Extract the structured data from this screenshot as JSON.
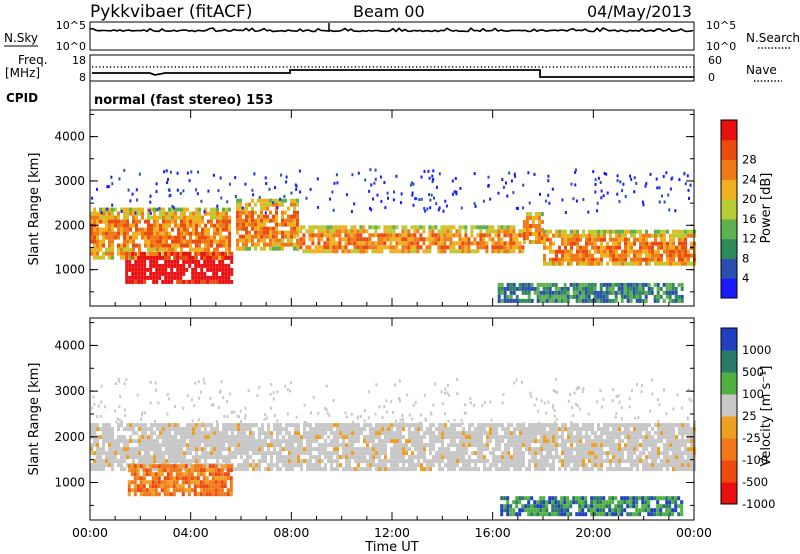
{
  "header": {
    "station": "Pykkvibaer (fitACF)",
    "beam": "Beam 00",
    "date": "04/May/2013"
  },
  "noise_panel": {
    "left_label": "N.Sky",
    "left_ticks": [
      "10^5",
      "10^0"
    ],
    "right_label": "N.Search",
    "right_ticks": [
      "10^5",
      "10^0"
    ]
  },
  "freq_panel": {
    "left_label_1": "Freq.",
    "left_label_2": "[MHz]",
    "left_ticks": [
      "18",
      "8"
    ],
    "right_label": "Nave",
    "right_ticks": [
      "60",
      "0"
    ]
  },
  "cpid_panel": {
    "label": "CPID",
    "text": "normal (fast stereo) 153"
  },
  "chart_data": [
    {
      "type": "heatmap",
      "title": "",
      "ylabel": "Slant Range [km]",
      "ylim": [
        180,
        4600
      ],
      "y_ticks": [
        "1000",
        "2000",
        "3000",
        "4000"
      ],
      "xlim": [
        0,
        24
      ],
      "colorbar": {
        "label": "Power [dB]",
        "ticks": [
          "4",
          "8",
          "12",
          "16",
          "20",
          "24",
          "28"
        ],
        "colors": [
          "#1a1aff",
          "#2a4fb0",
          "#2f8a5a",
          "#5fb04f",
          "#b8cc36",
          "#f0b020",
          "#f07a18",
          "#ea4c10",
          "#e81010"
        ]
      },
      "echo_bands_range_km": [
        {
          "start_h": 0,
          "end_h": 5.6,
          "lo": 1300,
          "hi": 2400,
          "level": "medium"
        },
        {
          "start_h": 1.4,
          "end_h": 5.6,
          "lo": 700,
          "hi": 1400,
          "level": "strong"
        },
        {
          "start_h": 5.8,
          "end_h": 8.2,
          "lo": 1500,
          "hi": 2600,
          "level": "medium"
        },
        {
          "start_h": 8.2,
          "end_h": 17.2,
          "lo": 1400,
          "hi": 2000,
          "level": "medium"
        },
        {
          "start_h": 17.2,
          "end_h": 18.0,
          "lo": 1600,
          "hi": 2300,
          "level": "medium"
        },
        {
          "start_h": 18.0,
          "end_h": 24.0,
          "lo": 1100,
          "hi": 1900,
          "level": "medium"
        },
        {
          "start_h": 16.2,
          "end_h": 23.5,
          "lo": 300,
          "hi": 700,
          "level": "weak"
        }
      ]
    },
    {
      "type": "heatmap",
      "title": "",
      "ylabel": "Slant Range [km]",
      "ylim": [
        180,
        4600
      ],
      "y_ticks": [
        "1000",
        "2000",
        "3000",
        "4000"
      ],
      "xlim": [
        0,
        24
      ],
      "x_ticks": [
        "00:00",
        "04:00",
        "08:00",
        "12:00",
        "16:00",
        "20:00",
        "00:00"
      ],
      "xlabel": "Time UT",
      "colorbar": {
        "label": "Velocity [m s⁻¹]",
        "ticks": [
          "1000",
          "500",
          "100",
          "25",
          "-25",
          "-100",
          "-500",
          "-1000"
        ],
        "colors": [
          "#2040c0",
          "#2a7a6a",
          "#52b040",
          "#c8c8c8",
          "#f0a020",
          "#f07818",
          "#ee4a10",
          "#e81010"
        ]
      },
      "echo_bands_range_km": [
        {
          "start_h": 0,
          "end_h": 24,
          "lo": 1300,
          "hi": 2300,
          "level": "ground_scatter"
        },
        {
          "start_h": 1.5,
          "end_h": 5.6,
          "lo": 700,
          "hi": 1400,
          "level": "negative_velocity"
        },
        {
          "start_h": 16.3,
          "end_h": 23.5,
          "lo": 300,
          "hi": 700,
          "level": "positive_velocity"
        }
      ]
    }
  ]
}
